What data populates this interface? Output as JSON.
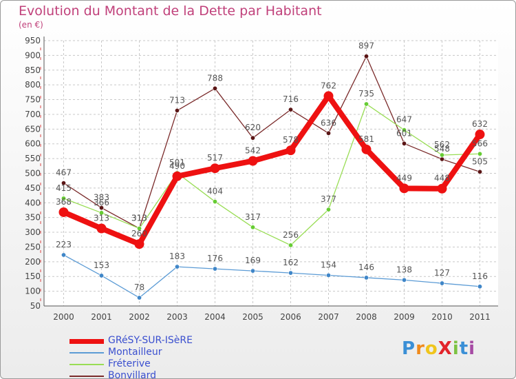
{
  "page": {
    "title": "Evolution du Montant de la Dette par Habitant",
    "subtitle": "(en €)",
    "logo": "ProXiti"
  },
  "chart_data": {
    "type": "line",
    "x": [
      "2000",
      "2001",
      "2002",
      "2003",
      "2004",
      "2005",
      "2006",
      "2007",
      "2008",
      "2009",
      "2010",
      "2011"
    ],
    "ylim": [
      50,
      950
    ],
    "yticks": [
      50,
      100,
      150,
      200,
      250,
      300,
      350,
      400,
      450,
      500,
      550,
      600,
      650,
      700,
      750,
      800,
      850,
      900,
      950
    ],
    "grid": true,
    "legend_position": "bottom-left",
    "series": [
      {
        "name": "GRéSY-SUR-ISèRE",
        "color": "#ee1111",
        "marker": "#ee1111",
        "values": [
          368,
          313,
          260,
          490,
          517,
          542,
          578,
          762,
          581,
          449,
          448,
          632
        ]
      },
      {
        "name": "Montailleur",
        "color": "#5b9bd5",
        "marker": "#3f86c8",
        "values": [
          223,
          153,
          78,
          183,
          176,
          169,
          162,
          154,
          146,
          138,
          127,
          116
        ]
      },
      {
        "name": "Fréterive",
        "color": "#99dd55",
        "marker": "#66cc33",
        "values": [
          415,
          366,
          313,
          501,
          404,
          317,
          256,
          377,
          735,
          647,
          562,
          566
        ]
      },
      {
        "name": "Bonvillard",
        "color": "#7a2a2a",
        "marker": "#5a1515",
        "values": [
          467,
          383,
          313,
          713,
          788,
          620,
          716,
          636,
          897,
          601,
          548,
          505
        ]
      }
    ]
  }
}
